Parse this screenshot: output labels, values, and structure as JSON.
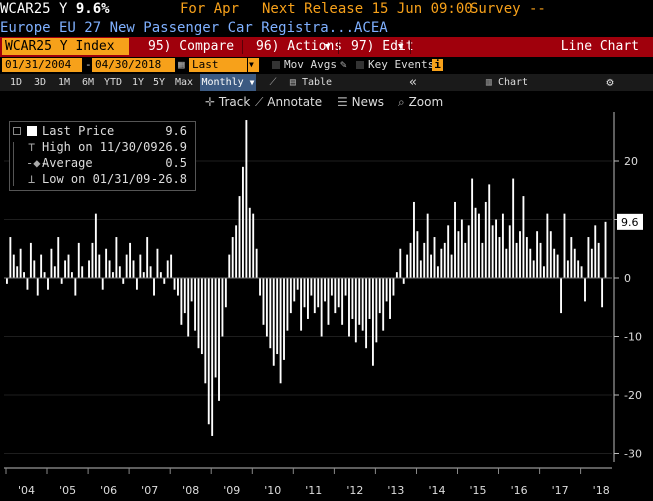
{
  "header": {
    "ticker_line": "WCAR25 Y",
    "last_value": "9.6%",
    "for_label": "For Apr",
    "next_release_label": "Next Release 15 Jun 09:00",
    "survey_label": "Survey --",
    "description": "Europe EU 27 New Passenger Car Registra...ACEA"
  },
  "toolbar": {
    "ticker_box": "WCAR25 Y Index",
    "compare": "95) Compare",
    "actions": "96) Actions",
    "edit": "97) Edit",
    "chart_type": "Line Chart"
  },
  "range": {
    "start": "01/31/2004",
    "end": "04/30/2018",
    "field": "Last Price",
    "mov_avgs": "Mov Avgs",
    "key_events": "Key Events"
  },
  "periods": [
    "1D",
    "3D",
    "1M",
    "6M",
    "YTD",
    "1Y",
    "5Y",
    "Max"
  ],
  "frequency": "Monthly",
  "table_label": "Table",
  "chart_content_label": "Chart Content",
  "tools": {
    "track": "Track",
    "annotate": "Annotate",
    "news": "News",
    "zoom": "Zoom"
  },
  "legend": {
    "last_price_label": "Last Price",
    "last_price_value": "9.6",
    "high_label": "High on 11/30/09",
    "high_value": "26.9",
    "average_label": "Average",
    "average_value": "0.5",
    "low_label": "Low on 01/31/09",
    "low_value": "-26.8"
  },
  "colors": {
    "amber": "#f7a11a",
    "red_bar": "#a0000c",
    "bars": "#ffffff",
    "background": "#000000"
  },
  "chart_data": {
    "type": "bar",
    "ylim": [
      -32,
      31
    ],
    "y_ticks": [
      30,
      20,
      10,
      0,
      -10,
      -20,
      -30
    ],
    "x_tick_labels": [
      "'04",
      "'05",
      "'06",
      "'07",
      "'08",
      "'09",
      "'10",
      "'11",
      "'12",
      "'13",
      "'14",
      "'15",
      "'16",
      "'17",
      "'18"
    ],
    "last_value_label": "9.6",
    "values": [
      -1,
      7,
      4,
      2,
      5,
      1,
      -2,
      6,
      3,
      -3,
      4,
      1,
      -2,
      5,
      2,
      7,
      -1,
      3,
      4,
      1,
      -3,
      6,
      2,
      0,
      3,
      6,
      11,
      4,
      -2,
      5,
      3,
      1,
      7,
      2,
      -1,
      4,
      6,
      3,
      -2,
      4,
      1,
      7,
      2,
      -3,
      5,
      1,
      -1,
      3,
      4,
      -2,
      -3,
      -8,
      -6,
      -10,
      -4,
      -9,
      -12,
      -13,
      -18,
      -25,
      -27,
      -17,
      -21,
      -10,
      -5,
      4,
      7,
      9,
      14,
      19,
      27,
      12,
      11,
      5,
      -3,
      -8,
      -10,
      -12,
      -15,
      -13,
      -18,
      -14,
      -9,
      -6,
      -4,
      -2,
      -9,
      -5,
      -7,
      -3,
      -6,
      -5,
      -10,
      -4,
      -8,
      -3,
      -6,
      -5,
      -8,
      -3,
      -10,
      -7,
      -11,
      -8,
      -9,
      -12,
      -7,
      -15,
      -11,
      -6,
      -9,
      -4,
      -7,
      -3,
      1,
      5,
      -1,
      4,
      6,
      13,
      8,
      3,
      6,
      11,
      4,
      7,
      2,
      5,
      6,
      9,
      4,
      13,
      8,
      10,
      6,
      9,
      17,
      12,
      11,
      6,
      13,
      16,
      9,
      10,
      7,
      11,
      5,
      9,
      17,
      6,
      8,
      14,
      7,
      5,
      3,
      8,
      6,
      2,
      11,
      8,
      5,
      4,
      -6,
      11,
      3,
      7,
      5,
      3,
      2,
      -4,
      7,
      5,
      9,
      6,
      -5,
      9.6
    ]
  }
}
